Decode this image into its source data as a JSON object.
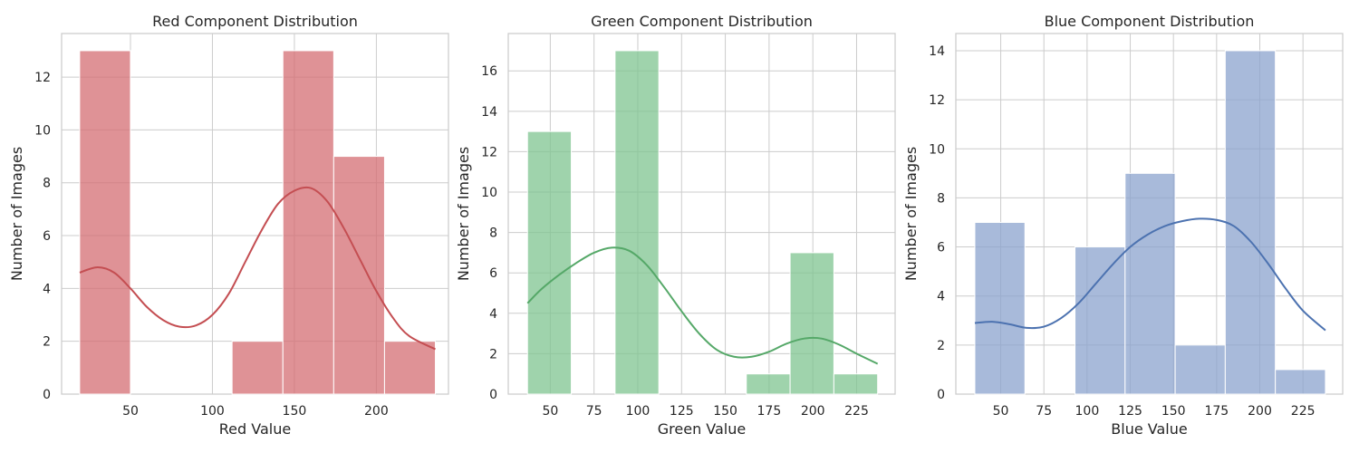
{
  "chart_data": [
    {
      "type": "bar",
      "title": "Red Component Distribution",
      "xlabel": "Red Value",
      "ylabel": "Number of Images",
      "xlim": [
        8,
        244
      ],
      "ylim": [
        0,
        13.65
      ],
      "xticks": [
        50,
        100,
        150,
        200
      ],
      "yticks": [
        0,
        2,
        4,
        6,
        8,
        10,
        12
      ],
      "bar_color": "#dd8452",
      "bar_fill": "#d46e73",
      "line_color": "#c44e52",
      "bins": [
        {
          "x0": 19,
          "x1": 50,
          "count": 13
        },
        {
          "x0": 50,
          "x1": 81,
          "count": 0
        },
        {
          "x0": 81,
          "x1": 112,
          "count": 0
        },
        {
          "x0": 112,
          "x1": 143,
          "count": 2
        },
        {
          "x0": 143,
          "x1": 174,
          "count": 13
        },
        {
          "x0": 174,
          "x1": 205,
          "count": 9
        },
        {
          "x0": 205,
          "x1": 236,
          "count": 2
        }
      ],
      "kde": {
        "x": [
          19,
          30,
          40,
          50,
          60,
          70,
          80,
          90,
          100,
          110,
          120,
          130,
          140,
          150,
          160,
          170,
          180,
          190,
          200,
          210,
          220,
          236
        ],
        "y": [
          4.6,
          4.8,
          4.6,
          4.0,
          3.3,
          2.8,
          2.55,
          2.6,
          3.0,
          3.8,
          5.0,
          6.2,
          7.2,
          7.7,
          7.8,
          7.3,
          6.3,
          5.1,
          3.9,
          2.9,
          2.2,
          1.7
        ]
      }
    },
    {
      "type": "bar",
      "title": "Green Component Distribution",
      "xlabel": "Green Value",
      "ylabel": "Number of Images",
      "xlim": [
        26,
        247
      ],
      "ylim": [
        0,
        17.85
      ],
      "xticks": [
        50,
        75,
        100,
        125,
        150,
        175,
        200,
        225
      ],
      "yticks": [
        0,
        2,
        4,
        6,
        8,
        10,
        12,
        14,
        16
      ],
      "bar_fill": "#7fc490",
      "line_color": "#55a868",
      "bins": [
        {
          "x0": 37,
          "x1": 62,
          "count": 13
        },
        {
          "x0": 62,
          "x1": 87,
          "count": 0
        },
        {
          "x0": 87,
          "x1": 112,
          "count": 17
        },
        {
          "x0": 112,
          "x1": 137,
          "count": 0
        },
        {
          "x0": 137,
          "x1": 162,
          "count": 0
        },
        {
          "x0": 162,
          "x1": 187,
          "count": 1
        },
        {
          "x0": 187,
          "x1": 212,
          "count": 7
        },
        {
          "x0": 212,
          "x1": 237,
          "count": 1
        }
      ],
      "kde": {
        "x": [
          37,
          45,
          55,
          65,
          75,
          85,
          95,
          105,
          115,
          125,
          135,
          145,
          155,
          165,
          175,
          185,
          195,
          205,
          215,
          225,
          237
        ],
        "y": [
          4.5,
          5.2,
          5.9,
          6.5,
          7.0,
          7.25,
          7.1,
          6.4,
          5.3,
          4.1,
          3.0,
          2.2,
          1.85,
          1.85,
          2.1,
          2.5,
          2.75,
          2.75,
          2.45,
          2.0,
          1.5
        ]
      }
    },
    {
      "type": "bar",
      "title": "Blue Component Distribution",
      "xlabel": "Blue Value",
      "ylabel": "Number of Images",
      "xlim": [
        24,
        248
      ],
      "ylim": [
        0,
        14.7
      ],
      "xticks": [
        50,
        75,
        100,
        125,
        150,
        175,
        200,
        225
      ],
      "yticks": [
        0,
        2,
        4,
        6,
        8,
        10,
        12,
        14
      ],
      "bar_fill": "#8ba3cd",
      "line_color": "#4c72b0",
      "bins": [
        {
          "x0": 35,
          "x1": 64,
          "count": 7
        },
        {
          "x0": 64,
          "x1": 93,
          "count": 0
        },
        {
          "x0": 93,
          "x1": 122,
          "count": 6
        },
        {
          "x0": 122,
          "x1": 151,
          "count": 9
        },
        {
          "x0": 151,
          "x1": 180,
          "count": 2
        },
        {
          "x0": 180,
          "x1": 209,
          "count": 14
        },
        {
          "x0": 209,
          "x1": 238,
          "count": 1
        }
      ],
      "kde": {
        "x": [
          35,
          45,
          55,
          65,
          75,
          85,
          95,
          105,
          115,
          125,
          135,
          145,
          155,
          165,
          175,
          185,
          195,
          205,
          215,
          225,
          238
        ],
        "y": [
          2.9,
          2.95,
          2.85,
          2.7,
          2.75,
          3.1,
          3.7,
          4.5,
          5.3,
          6.0,
          6.5,
          6.85,
          7.05,
          7.15,
          7.1,
          6.85,
          6.2,
          5.3,
          4.3,
          3.4,
          2.6
        ]
      }
    }
  ]
}
